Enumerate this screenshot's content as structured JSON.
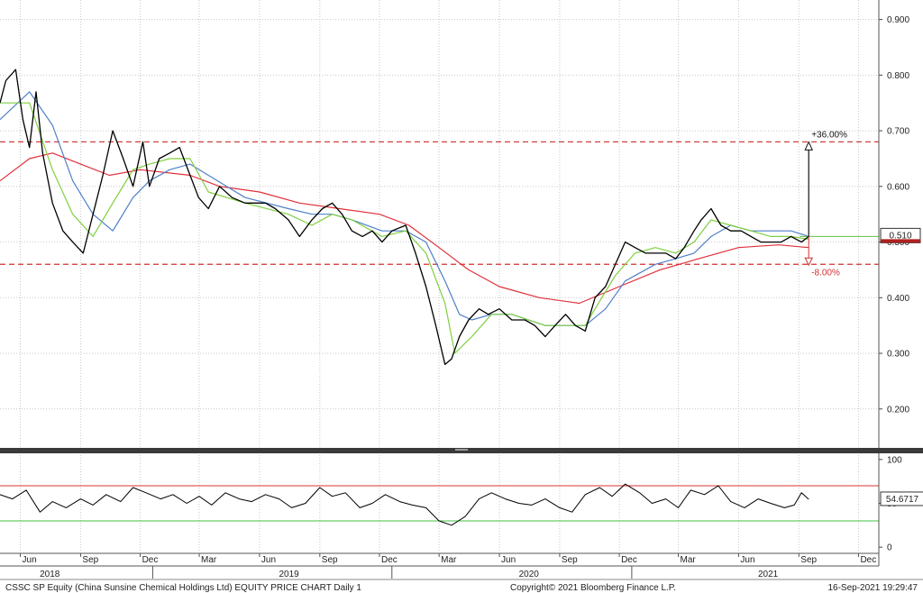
{
  "chart_data": {
    "type": "line",
    "title": "CSSC SP Equity (China Sunsine Chemical Holdings Ltd) EQUITY PRICE CHART  Daily 1",
    "footer_copyright": "Copyright© 2021 Bloomberg Finance L.P.",
    "footer_timestamp": "16-Sep-2021 19:29:47",
    "x_month_labels": [
      "Jun",
      "Sep",
      "Dec",
      "Mar",
      "Jun",
      "Sep",
      "Dec",
      "Mar",
      "Jun",
      "Sep",
      "Dec",
      "Mar",
      "Jun",
      "Sep",
      "Dec"
    ],
    "x_month_dates": [
      "2018-06-01",
      "2018-09-01",
      "2018-12-01",
      "2019-03-01",
      "2019-06-01",
      "2019-09-01",
      "2019-12-01",
      "2020-03-01",
      "2020-06-01",
      "2020-09-01",
      "2020-12-01",
      "2021-03-01",
      "2021-06-01",
      "2021-09-01",
      "2021-12-01"
    ],
    "x_year_labels": [
      "2018",
      "2019",
      "2020",
      "2021"
    ],
    "x_year_dates": [
      "2018-07-16",
      "2019-07-16",
      "2020-07-16",
      "2021-07-16"
    ],
    "x_range": [
      "2018-05-01",
      "2022-01-01"
    ],
    "price_panel": {
      "y_ticks": [
        "0.200",
        "0.300",
        "0.400",
        "0.500",
        "0.600",
        "0.700",
        "0.800",
        "0.900"
      ],
      "ylim": [
        0.13,
        0.935
      ],
      "grid": true,
      "last_price_label": "0.510",
      "last_price": 0.51,
      "upper_level": 0.68,
      "lower_level": 0.46,
      "upper_annotation": "+36.00%",
      "lower_annotation": "-8.00%",
      "arrow_date": "2021-09-16",
      "series": [
        {
          "role": "price",
          "color": "#000000",
          "x": [
            "2018-05-01",
            "2018-05-10",
            "2018-05-25",
            "2018-06-05",
            "2018-06-15",
            "2018-06-25",
            "2018-07-05",
            "2018-07-20",
            "2018-08-05",
            "2018-08-20",
            "2018-09-05",
            "2018-09-20",
            "2018-10-05",
            "2018-10-20",
            "2018-11-05",
            "2018-11-20",
            "2018-12-05",
            "2018-12-15",
            "2018-12-30",
            "2019-01-15",
            "2019-01-30",
            "2019-02-15",
            "2019-02-28",
            "2019-03-15",
            "2019-04-01",
            "2019-04-20",
            "2019-05-10",
            "2019-05-25",
            "2019-06-10",
            "2019-06-25",
            "2019-07-15",
            "2019-08-01",
            "2019-08-20",
            "2019-09-05",
            "2019-09-20",
            "2019-10-05",
            "2019-10-20",
            "2019-11-05",
            "2019-11-20",
            "2019-12-05",
            "2019-12-20",
            "2020-01-10",
            "2020-01-25",
            "2020-02-10",
            "2020-02-25",
            "2020-03-10",
            "2020-03-20",
            "2020-04-01",
            "2020-04-15",
            "2020-05-01",
            "2020-05-15",
            "2020-06-01",
            "2020-06-20",
            "2020-07-10",
            "2020-07-25",
            "2020-08-10",
            "2020-08-25",
            "2020-09-10",
            "2020-09-25",
            "2020-10-10",
            "2020-10-25",
            "2020-11-10",
            "2020-11-25",
            "2020-12-10",
            "2020-12-25",
            "2021-01-10",
            "2021-01-25",
            "2021-02-10",
            "2021-02-25",
            "2021-03-10",
            "2021-03-25",
            "2021-04-05",
            "2021-04-20",
            "2021-05-05",
            "2021-05-20",
            "2021-06-05",
            "2021-06-20",
            "2021-07-05",
            "2021-07-20",
            "2021-08-05",
            "2021-08-20",
            "2021-09-05",
            "2021-09-16"
          ],
          "values": [
            0.75,
            0.79,
            0.81,
            0.72,
            0.67,
            0.77,
            0.66,
            0.57,
            0.52,
            0.5,
            0.48,
            0.55,
            0.62,
            0.7,
            0.65,
            0.6,
            0.68,
            0.6,
            0.65,
            0.66,
            0.67,
            0.62,
            0.58,
            0.56,
            0.6,
            0.58,
            0.57,
            0.57,
            0.57,
            0.56,
            0.54,
            0.51,
            0.54,
            0.56,
            0.57,
            0.55,
            0.52,
            0.51,
            0.52,
            0.5,
            0.52,
            0.53,
            0.48,
            0.42,
            0.35,
            0.28,
            0.29,
            0.33,
            0.36,
            0.38,
            0.37,
            0.38,
            0.36,
            0.36,
            0.35,
            0.33,
            0.35,
            0.37,
            0.35,
            0.34,
            0.4,
            0.42,
            0.46,
            0.5,
            0.49,
            0.48,
            0.48,
            0.48,
            0.47,
            0.49,
            0.52,
            0.54,
            0.56,
            0.53,
            0.52,
            0.52,
            0.51,
            0.5,
            0.5,
            0.5,
            0.51,
            0.5,
            0.51
          ]
        },
        {
          "role": "moving average (green)",
          "color": "#7fd040",
          "x": [
            "2018-05-01",
            "2018-06-15",
            "2018-07-20",
            "2018-08-20",
            "2018-09-20",
            "2018-10-20",
            "2018-11-20",
            "2018-12-15",
            "2019-01-15",
            "2019-02-15",
            "2019-03-15",
            "2019-05-10",
            "2019-07-15",
            "2019-08-20",
            "2019-09-20",
            "2019-10-20",
            "2019-12-05",
            "2020-01-10",
            "2020-02-10",
            "2020-03-10",
            "2020-03-25",
            "2020-04-20",
            "2020-05-20",
            "2020-06-20",
            "2020-08-10",
            "2020-09-10",
            "2020-10-10",
            "2020-10-25",
            "2020-11-25",
            "2020-12-25",
            "2021-01-25",
            "2021-02-25",
            "2021-03-25",
            "2021-04-20",
            "2021-05-20",
            "2021-06-20",
            "2021-07-20",
            "2021-08-20",
            "2021-09-16"
          ],
          "values": [
            0.75,
            0.75,
            0.63,
            0.55,
            0.51,
            0.57,
            0.63,
            0.64,
            0.65,
            0.65,
            0.59,
            0.57,
            0.55,
            0.53,
            0.55,
            0.54,
            0.51,
            0.52,
            0.48,
            0.39,
            0.3,
            0.33,
            0.37,
            0.37,
            0.35,
            0.35,
            0.35,
            0.38,
            0.44,
            0.48,
            0.49,
            0.48,
            0.5,
            0.54,
            0.53,
            0.52,
            0.51,
            0.51,
            0.505
          ]
        },
        {
          "role": "moving average (blue)",
          "color": "#5080c8",
          "x": [
            "2018-05-01",
            "2018-06-15",
            "2018-07-20",
            "2018-08-20",
            "2018-09-20",
            "2018-10-20",
            "2018-11-20",
            "2018-12-15",
            "2019-01-15",
            "2019-02-15",
            "2019-03-15",
            "2019-05-10",
            "2019-07-15",
            "2019-08-20",
            "2019-09-20",
            "2019-10-20",
            "2019-12-05",
            "2020-01-10",
            "2020-02-10",
            "2020-03-10",
            "2020-04-01",
            "2020-04-20",
            "2020-05-20",
            "2020-06-20",
            "2020-08-10",
            "2020-09-10",
            "2020-10-10",
            "2020-11-10",
            "2020-12-10",
            "2021-01-25",
            "2021-02-25",
            "2021-03-25",
            "2021-04-20",
            "2021-05-20",
            "2021-06-20",
            "2021-07-20",
            "2021-08-20",
            "2021-09-16"
          ],
          "values": [
            0.72,
            0.77,
            0.71,
            0.61,
            0.55,
            0.52,
            0.58,
            0.61,
            0.63,
            0.64,
            0.62,
            0.58,
            0.56,
            0.55,
            0.55,
            0.54,
            0.52,
            0.52,
            0.5,
            0.43,
            0.37,
            0.36,
            0.37,
            0.37,
            0.35,
            0.35,
            0.35,
            0.38,
            0.43,
            0.46,
            0.47,
            0.48,
            0.51,
            0.53,
            0.52,
            0.52,
            0.52,
            0.51
          ]
        },
        {
          "role": "moving average (red)",
          "color": "#e0303a",
          "x": [
            "2018-05-01",
            "2018-06-15",
            "2018-07-20",
            "2018-09-01",
            "2018-10-15",
            "2018-12-01",
            "2019-02-15",
            "2019-04-01",
            "2019-06-01",
            "2019-08-01",
            "2019-10-01",
            "2019-12-01",
            "2020-01-15",
            "2020-03-01",
            "2020-04-15",
            "2020-06-01",
            "2020-08-01",
            "2020-10-01",
            "2020-12-01",
            "2021-02-01",
            "2021-04-01",
            "2021-06-01",
            "2021-08-01",
            "2021-09-16"
          ],
          "values": [
            0.61,
            0.65,
            0.66,
            0.64,
            0.62,
            0.63,
            0.62,
            0.6,
            0.59,
            0.57,
            0.56,
            0.55,
            0.53,
            0.49,
            0.45,
            0.42,
            0.4,
            0.39,
            0.42,
            0.45,
            0.47,
            0.49,
            0.495,
            0.49
          ]
        }
      ]
    },
    "rsi_panel": {
      "y_ticks": [
        "0",
        "50",
        "100"
      ],
      "ylim": [
        -5,
        105
      ],
      "upper_band": 70,
      "lower_band": 30,
      "last_value_label": "54.6717",
      "last_value": 54.6717,
      "series": [
        {
          "role": "rsi",
          "color": "#000000",
          "x": [
            "2018-05-01",
            "2018-05-20",
            "2018-06-10",
            "2018-07-01",
            "2018-07-20",
            "2018-08-10",
            "2018-09-01",
            "2018-09-20",
            "2018-10-10",
            "2018-11-01",
            "2018-11-20",
            "2018-12-10",
            "2019-01-01",
            "2019-01-20",
            "2019-02-10",
            "2019-03-01",
            "2019-03-20",
            "2019-04-10",
            "2019-05-01",
            "2019-05-20",
            "2019-06-10",
            "2019-07-01",
            "2019-07-20",
            "2019-08-10",
            "2019-09-01",
            "2019-09-20",
            "2019-10-10",
            "2019-11-01",
            "2019-11-20",
            "2019-12-10",
            "2020-01-01",
            "2020-01-20",
            "2020-02-10",
            "2020-03-01",
            "2020-03-20",
            "2020-04-10",
            "2020-05-01",
            "2020-05-20",
            "2020-06-10",
            "2020-07-01",
            "2020-07-20",
            "2020-08-10",
            "2020-09-01",
            "2020-09-20",
            "2020-10-10",
            "2020-11-01",
            "2020-11-20",
            "2020-12-10",
            "2021-01-01",
            "2021-01-20",
            "2021-02-10",
            "2021-03-01",
            "2021-03-20",
            "2021-04-10",
            "2021-05-01",
            "2021-05-20",
            "2021-06-10",
            "2021-07-01",
            "2021-07-20",
            "2021-08-10",
            "2021-08-25",
            "2021-09-05",
            "2021-09-16"
          ],
          "values": [
            60,
            55,
            65,
            40,
            52,
            45,
            55,
            48,
            60,
            52,
            68,
            62,
            55,
            60,
            50,
            58,
            48,
            62,
            55,
            52,
            60,
            55,
            45,
            50,
            68,
            58,
            62,
            45,
            50,
            60,
            52,
            48,
            45,
            30,
            25,
            35,
            55,
            62,
            55,
            50,
            48,
            55,
            45,
            40,
            60,
            68,
            58,
            72,
            62,
            50,
            55,
            45,
            65,
            60,
            70,
            52,
            45,
            55,
            50,
            45,
            48,
            62,
            54.67
          ]
        }
      ]
    }
  }
}
